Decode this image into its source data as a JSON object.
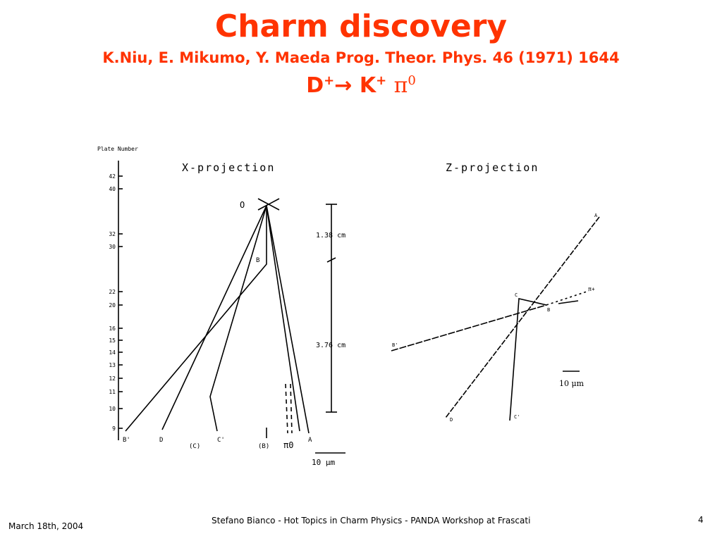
{
  "header": {
    "title": "Charm discovery",
    "subtitle": "K.Niu, E. Mikumo, Y. Maeda Prog. Theor. Phys. 46 (1971) 1644",
    "reaction": {
      "parent": "D",
      "parent_charge": "+",
      "arrow": "→",
      "product1": "K",
      "product1_charge": "+",
      "product2": "π",
      "product2_charge": "0"
    }
  },
  "figure": {
    "axis_title": "Plate Number",
    "plate_numbers": [
      "42",
      "40",
      "32",
      "30",
      "22",
      "20",
      "16",
      "15",
      "14",
      "13",
      "12",
      "11",
      "10",
      "9"
    ],
    "x_projection": {
      "title": "X-projection",
      "vertex": "O",
      "kink": "B",
      "scale_upper": "1.38 cm",
      "scale_lower": "3.76 cm",
      "scale_bar": "10 μm",
      "track_labels": [
        "B'",
        "D",
        "(C)",
        "C'",
        "(B)",
        "π0",
        "A"
      ]
    },
    "z_projection": {
      "title": "Z-projection",
      "labels": [
        "A",
        "C",
        "π+",
        "B",
        "B'",
        "D",
        "C'"
      ],
      "scale_bar": "10 μm"
    }
  },
  "footer": {
    "date": "March 18th, 2004",
    "text": "Stefano Bianco - Hot Topics in Charm Physics - PANDA Workshop at Frascati",
    "page": "4"
  }
}
